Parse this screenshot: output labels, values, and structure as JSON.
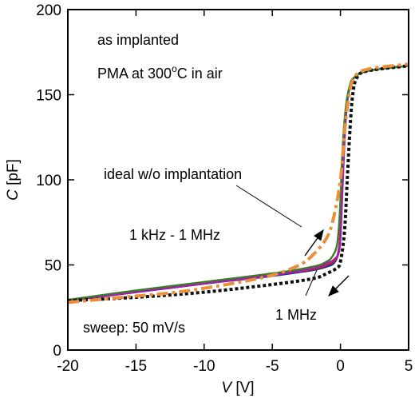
{
  "chart_data": {
    "type": "line",
    "xlabel_var": "V",
    "xlabel_unit": " [V]",
    "ylabel_var": "C",
    "ylabel_unit": " [pF]",
    "xlim": [
      -20,
      5
    ],
    "ylim": [
      0,
      200
    ],
    "xticks": [
      "-20",
      "-15",
      "-10",
      "-5",
      "0",
      "5"
    ],
    "yticks": [
      "0",
      "50",
      "100",
      "150",
      "200"
    ],
    "annotations": {
      "line1": "as implanted",
      "line2_pre": "PMA at 300",
      "line2_sup": "o",
      "line2_post": "C in air",
      "ideal": "ideal w/o implantation",
      "freq_range": "1 kHz - 1 MHz",
      "freq_1mhz": "1 MHz",
      "sweep": "sweep: 50 mV/s"
    },
    "series": [
      {
        "color": "#e8913a",
        "style": "dash-dot",
        "points": [
          [
            -20,
            28
          ],
          [
            -16,
            31
          ],
          [
            -12,
            34
          ],
          [
            -8,
            39
          ],
          [
            -5,
            44
          ],
          [
            -3,
            50
          ],
          [
            -2,
            56
          ],
          [
            -1,
            66
          ],
          [
            -0.5,
            78
          ],
          [
            0,
            100
          ],
          [
            0.3,
            128
          ],
          [
            0.6,
            148
          ],
          [
            1,
            160
          ],
          [
            2,
            165
          ],
          [
            5,
            168
          ]
        ]
      },
      {
        "color": "#1f2f8f",
        "style": "solid",
        "points": [
          [
            -20,
            29
          ],
          [
            -15,
            34
          ],
          [
            -10,
            39
          ],
          [
            -5,
            43.5
          ],
          [
            -2,
            47
          ],
          [
            -1,
            49
          ],
          [
            -0.5,
            51
          ],
          [
            -0.2,
            56
          ],
          [
            0,
            70
          ],
          [
            0.2,
            110
          ],
          [
            0.4,
            140
          ],
          [
            0.7,
            155
          ],
          [
            1,
            160
          ],
          [
            2,
            164
          ],
          [
            5,
            167
          ]
        ]
      },
      {
        "color": "#cc2020",
        "style": "solid",
        "points": [
          [
            -20,
            29
          ],
          [
            -15,
            34
          ],
          [
            -10,
            39
          ],
          [
            -5,
            44
          ],
          [
            -2,
            47.5
          ],
          [
            -1,
            50
          ],
          [
            -0.5,
            52
          ],
          [
            -0.15,
            57
          ],
          [
            0,
            72
          ],
          [
            0.2,
            112
          ],
          [
            0.4,
            141
          ],
          [
            0.7,
            155
          ],
          [
            1,
            160
          ],
          [
            2,
            164
          ],
          [
            5,
            167
          ]
        ]
      },
      {
        "color": "#a020b0",
        "style": "solid",
        "points": [
          [
            -20,
            29
          ],
          [
            -15,
            34
          ],
          [
            -10,
            39
          ],
          [
            -5,
            44
          ],
          [
            -2,
            48
          ],
          [
            -1,
            51
          ],
          [
            -0.5,
            53
          ],
          [
            -0.1,
            58
          ],
          [
            0.05,
            74
          ],
          [
            0.25,
            114
          ],
          [
            0.45,
            142
          ],
          [
            0.7,
            155
          ],
          [
            1,
            160
          ],
          [
            2,
            164
          ],
          [
            5,
            167
          ]
        ]
      },
      {
        "color": "#3a7a2a",
        "style": "solid",
        "points": [
          [
            -20,
            29.5
          ],
          [
            -15,
            35
          ],
          [
            -10,
            40
          ],
          [
            -5,
            45
          ],
          [
            -2,
            49
          ],
          [
            -1,
            52
          ],
          [
            -0.6,
            55
          ],
          [
            -0.25,
            62
          ],
          [
            -0.05,
            80
          ],
          [
            0.15,
            118
          ],
          [
            0.4,
            143
          ],
          [
            0.7,
            156
          ],
          [
            1,
            160
          ],
          [
            2,
            164
          ],
          [
            5,
            167
          ]
        ]
      },
      {
        "color": "#111111",
        "style": "dotted",
        "points": [
          [
            -20,
            29
          ],
          [
            -15,
            31
          ],
          [
            -10,
            34
          ],
          [
            -5,
            38.5
          ],
          [
            -2,
            42
          ],
          [
            -1,
            45
          ],
          [
            -0.3,
            48
          ],
          [
            0,
            52
          ],
          [
            0.3,
            70
          ],
          [
            0.5,
            100
          ],
          [
            0.7,
            130
          ],
          [
            0.9,
            150
          ],
          [
            1.2,
            160
          ],
          [
            2,
            164
          ],
          [
            5,
            167
          ]
        ]
      }
    ]
  }
}
